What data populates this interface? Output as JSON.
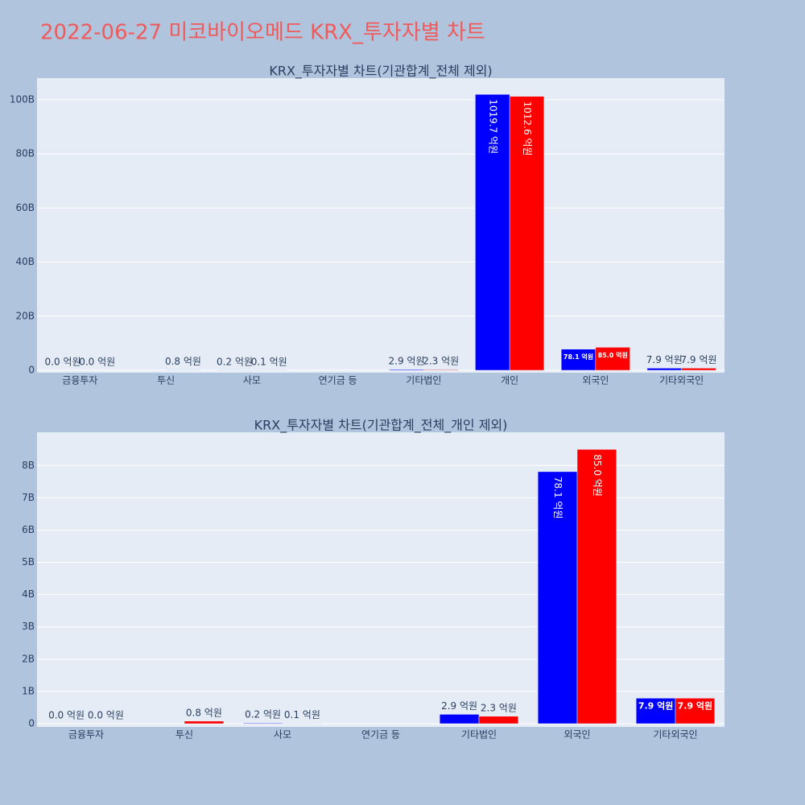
{
  "title": "2022-06-27 미코바이오메드 KRX_투자자별 차트",
  "chart_data": [
    {
      "type": "bar",
      "title": "KRX_투자자별 차트(기관합계_전체 제외)",
      "categories": [
        "금융투자",
        "투신",
        "사모",
        "연기금 등",
        "기타법인",
        "개인",
        "외국인",
        "기타외국인"
      ],
      "series": [
        {
          "color": "#0000ff",
          "values": [
            0,
            null,
            20000000,
            null,
            290000000,
            101970000000,
            7810000000,
            790000000
          ],
          "value_labels": [
            "0.0 억원",
            null,
            "0.2 억원",
            null,
            "2.9 억원",
            "1019.7 억원",
            "78.1 억원",
            "7.9 억원"
          ]
        },
        {
          "color": "#ff0000",
          "values": [
            0,
            80000000,
            10000000,
            null,
            230000000,
            101260000000,
            8500000000,
            790000000
          ],
          "value_labels": [
            "0.0 억원",
            "0.8 억원",
            "0.1 억원",
            null,
            "2.3 억원",
            "1012.6 억원",
            "85.0 억원",
            "7.9 억원"
          ]
        }
      ],
      "ylim": [
        0,
        108000000000
      ],
      "yticks": [
        0,
        {
          "value": 20000000000,
          "label": "20B"
        },
        {
          "value": 40000000000,
          "label": "40B"
        },
        {
          "value": 60000000000,
          "label": "60B"
        },
        {
          "value": 80000000000,
          "label": "80B"
        },
        {
          "value": 100000000000,
          "label": "100B"
        }
      ],
      "grid": true
    },
    {
      "type": "bar",
      "title": "KRX_투자자별 차트(기관합계_전체_개인 제외)",
      "categories": [
        "금융투자",
        "투신",
        "사모",
        "연기금 등",
        "기타법인",
        "외국인",
        "기타외국인"
      ],
      "series": [
        {
          "color": "#0000ff",
          "values": [
            0,
            null,
            20000000,
            null,
            290000000,
            7810000000,
            790000000
          ],
          "value_labels": [
            "0.0 억원",
            null,
            "0.2 억원",
            null,
            "2.9 억원",
            "78.1 억원",
            "7.9 억원"
          ]
        },
        {
          "color": "#ff0000",
          "values": [
            0,
            80000000,
            10000000,
            null,
            230000000,
            8500000000,
            790000000
          ],
          "value_labels": [
            "0.0 억원",
            "0.8 억원",
            "0.1 억원",
            null,
            "2.3 억원",
            "85.0 억원",
            "7.9 억원"
          ]
        }
      ],
      "ylim": [
        0,
        9030000000
      ],
      "yticks": [
        0,
        {
          "value": 1000000000,
          "label": "1B"
        },
        {
          "value": 2000000000,
          "label": "2B"
        },
        {
          "value": 3000000000,
          "label": "3B"
        },
        {
          "value": 4000000000,
          "label": "4B"
        },
        {
          "value": 5000000000,
          "label": "5B"
        },
        {
          "value": 6000000000,
          "label": "6B"
        },
        {
          "value": 7000000000,
          "label": "7B"
        },
        {
          "value": 8000000000,
          "label": "8B"
        }
      ],
      "grid": true
    }
  ]
}
